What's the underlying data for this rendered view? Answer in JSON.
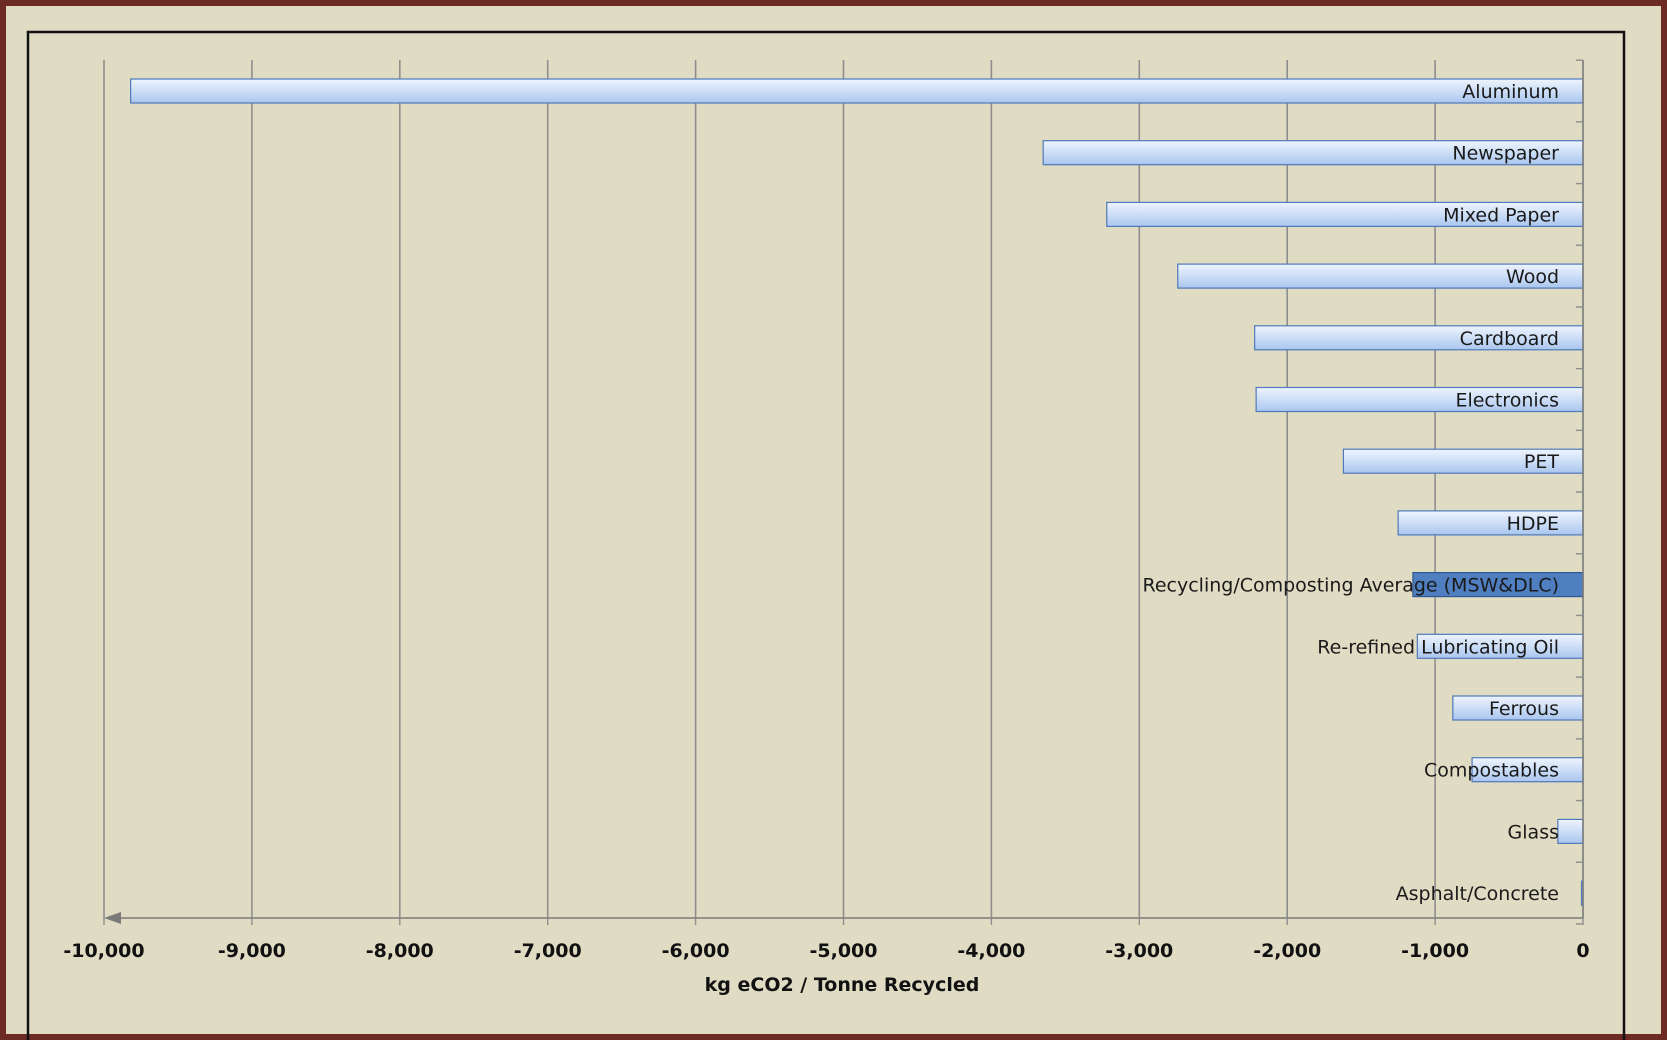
{
  "chart_data": {
    "type": "bar",
    "orientation": "horizontal",
    "categories": [
      "Aluminum",
      "Newspaper",
      "Mixed Paper",
      "Wood",
      "Cardboard",
      "Electronics",
      "PET",
      "HDPE",
      "Recycling/Composting Average (MSW&DLC)",
      "Re-refined Lubricating Oil",
      "Ferrous",
      "Compostables",
      "Glass",
      "Asphalt/Concrete"
    ],
    "values": [
      -9820,
      -3650,
      -3220,
      -2740,
      -2220,
      -2210,
      -1620,
      -1250,
      -1150,
      -1120,
      -880,
      -750,
      -170,
      -10
    ],
    "highlight_category": "Recycling/Composting Average (MSW&DLC)",
    "xlabel": "kg eCO2 / Tonne Recycled",
    "ylabel": "",
    "title": "",
    "xlim": [
      -10000,
      0
    ],
    "x_ticks": [
      -10000,
      -9000,
      -8000,
      -7000,
      -6000,
      -5000,
      -4000,
      -3000,
      -2000,
      -1000,
      0
    ],
    "x_tick_labels": [
      "-10,000",
      "-9,000",
      "-8,000",
      "-7,000",
      "-6,000",
      "-5,000",
      "-4,000",
      "-3,000",
      "-2,000",
      "-1,000",
      "0"
    ],
    "grid": true,
    "legend": "none",
    "colors": {
      "bar_light": "#dce9fb",
      "bar_mid": "#b3cdf1",
      "bar_border": "#4f79b8",
      "bar_highlight": "#4f7fc0",
      "background": "#e0dcc4",
      "frame": "#6e2a24"
    }
  }
}
